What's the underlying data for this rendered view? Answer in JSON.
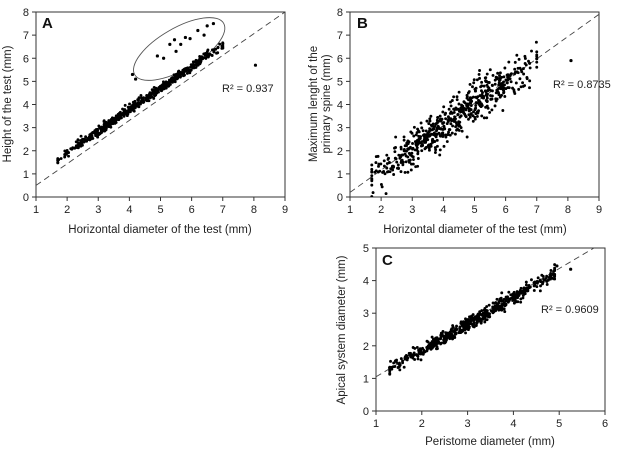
{
  "chart_data": [
    {
      "panel": "A",
      "type": "scatter",
      "xlabel": "Horizontal diameter of the test (mm)",
      "ylabel": "Height of the test (mm)",
      "xlim": [
        1,
        9
      ],
      "ylim": [
        0,
        8
      ],
      "xticks": [
        "1",
        "2",
        "3",
        "4",
        "5",
        "6",
        "7",
        "8",
        "9"
      ],
      "yticks": [
        "0",
        "1",
        "2",
        "3",
        "4",
        "5",
        "6",
        "7",
        "8"
      ],
      "annotation": "R² = 0.937",
      "trendline": {
        "style": "dashed",
        "x": [
          1,
          9
        ],
        "y": [
          0.5,
          8.0
        ]
      },
      "highlight_ellipse": {
        "cx": 5.6,
        "cy": 6.4,
        "rx": 1.65,
        "ry": 0.9,
        "angle": -30
      },
      "series": [
        {
          "n": 520,
          "x_range": [
            1.7,
            7.0
          ],
          "relation": "y ≈ 0.935x + 0.03",
          "scatter_sd": 0.1
        },
        {
          "points": [
            [
              4.1,
              5.3
            ],
            [
              4.2,
              5.1
            ],
            [
              4.9,
              6.1
            ],
            [
              5.1,
              6.0
            ],
            [
              5.3,
              6.6
            ],
            [
              5.45,
              6.8
            ],
            [
              5.65,
              6.6
            ],
            [
              5.8,
              6.9
            ],
            [
              5.95,
              6.85
            ],
            [
              6.2,
              7.2
            ],
            [
              6.4,
              7.0
            ],
            [
              6.5,
              7.4
            ],
            [
              6.7,
              7.5
            ],
            [
              8.05,
              5.7
            ],
            [
              5.5,
              6.3
            ]
          ]
        }
      ]
    },
    {
      "panel": "B",
      "type": "scatter",
      "xlabel": "Horizontal diameter of the test (mm)",
      "ylabel": "Maximum lenght of the primary spine (mm)",
      "ylabel_lines": [
        "Maximum lenght of the",
        "primary spine (mm)"
      ],
      "xlim": [
        1,
        9
      ],
      "ylim": [
        0,
        8
      ],
      "xticks": [
        "1",
        "2",
        "3",
        "4",
        "5",
        "6",
        "7",
        "8",
        "9"
      ],
      "yticks": [
        "0",
        "1",
        "2",
        "3",
        "4",
        "5",
        "6",
        "7",
        "8"
      ],
      "annotation": "R² = 0.8735",
      "trendline": {
        "style": "dashed",
        "x": [
          1,
          9
        ],
        "y": [
          0.2,
          7.9
        ]
      },
      "series": [
        {
          "n": 600,
          "x_range": [
            1.7,
            7.0
          ],
          "relation": "y ≈ 0.96x - 0.8",
          "scatter_sd": 0.42
        },
        {
          "points": [
            [
              8.1,
              5.9
            ]
          ]
        }
      ]
    },
    {
      "panel": "C",
      "type": "scatter",
      "xlabel": "Peristome diameter (mm)",
      "ylabel": "Apical system diameter (mm)",
      "xlim": [
        1,
        6
      ],
      "ylim": [
        0,
        5
      ],
      "xticks": [
        "1",
        "2",
        "3",
        "4",
        "5",
        "6"
      ],
      "yticks": [
        "0",
        "1",
        "2",
        "3",
        "4",
        "5"
      ],
      "annotation": "R² = 0.9609",
      "trendline": {
        "style": "dashed",
        "x": [
          1,
          6
        ],
        "y": [
          1.05,
          5.2
        ]
      },
      "series": [
        {
          "n": 560,
          "x_range": [
            1.3,
            4.9
          ],
          "relation": "y ≈ 0.82x + 0.2",
          "scatter_sd": 0.1
        },
        {
          "points": [
            [
              5.25,
              4.35
            ],
            [
              4.95,
              4.45
            ]
          ]
        }
      ]
    }
  ]
}
